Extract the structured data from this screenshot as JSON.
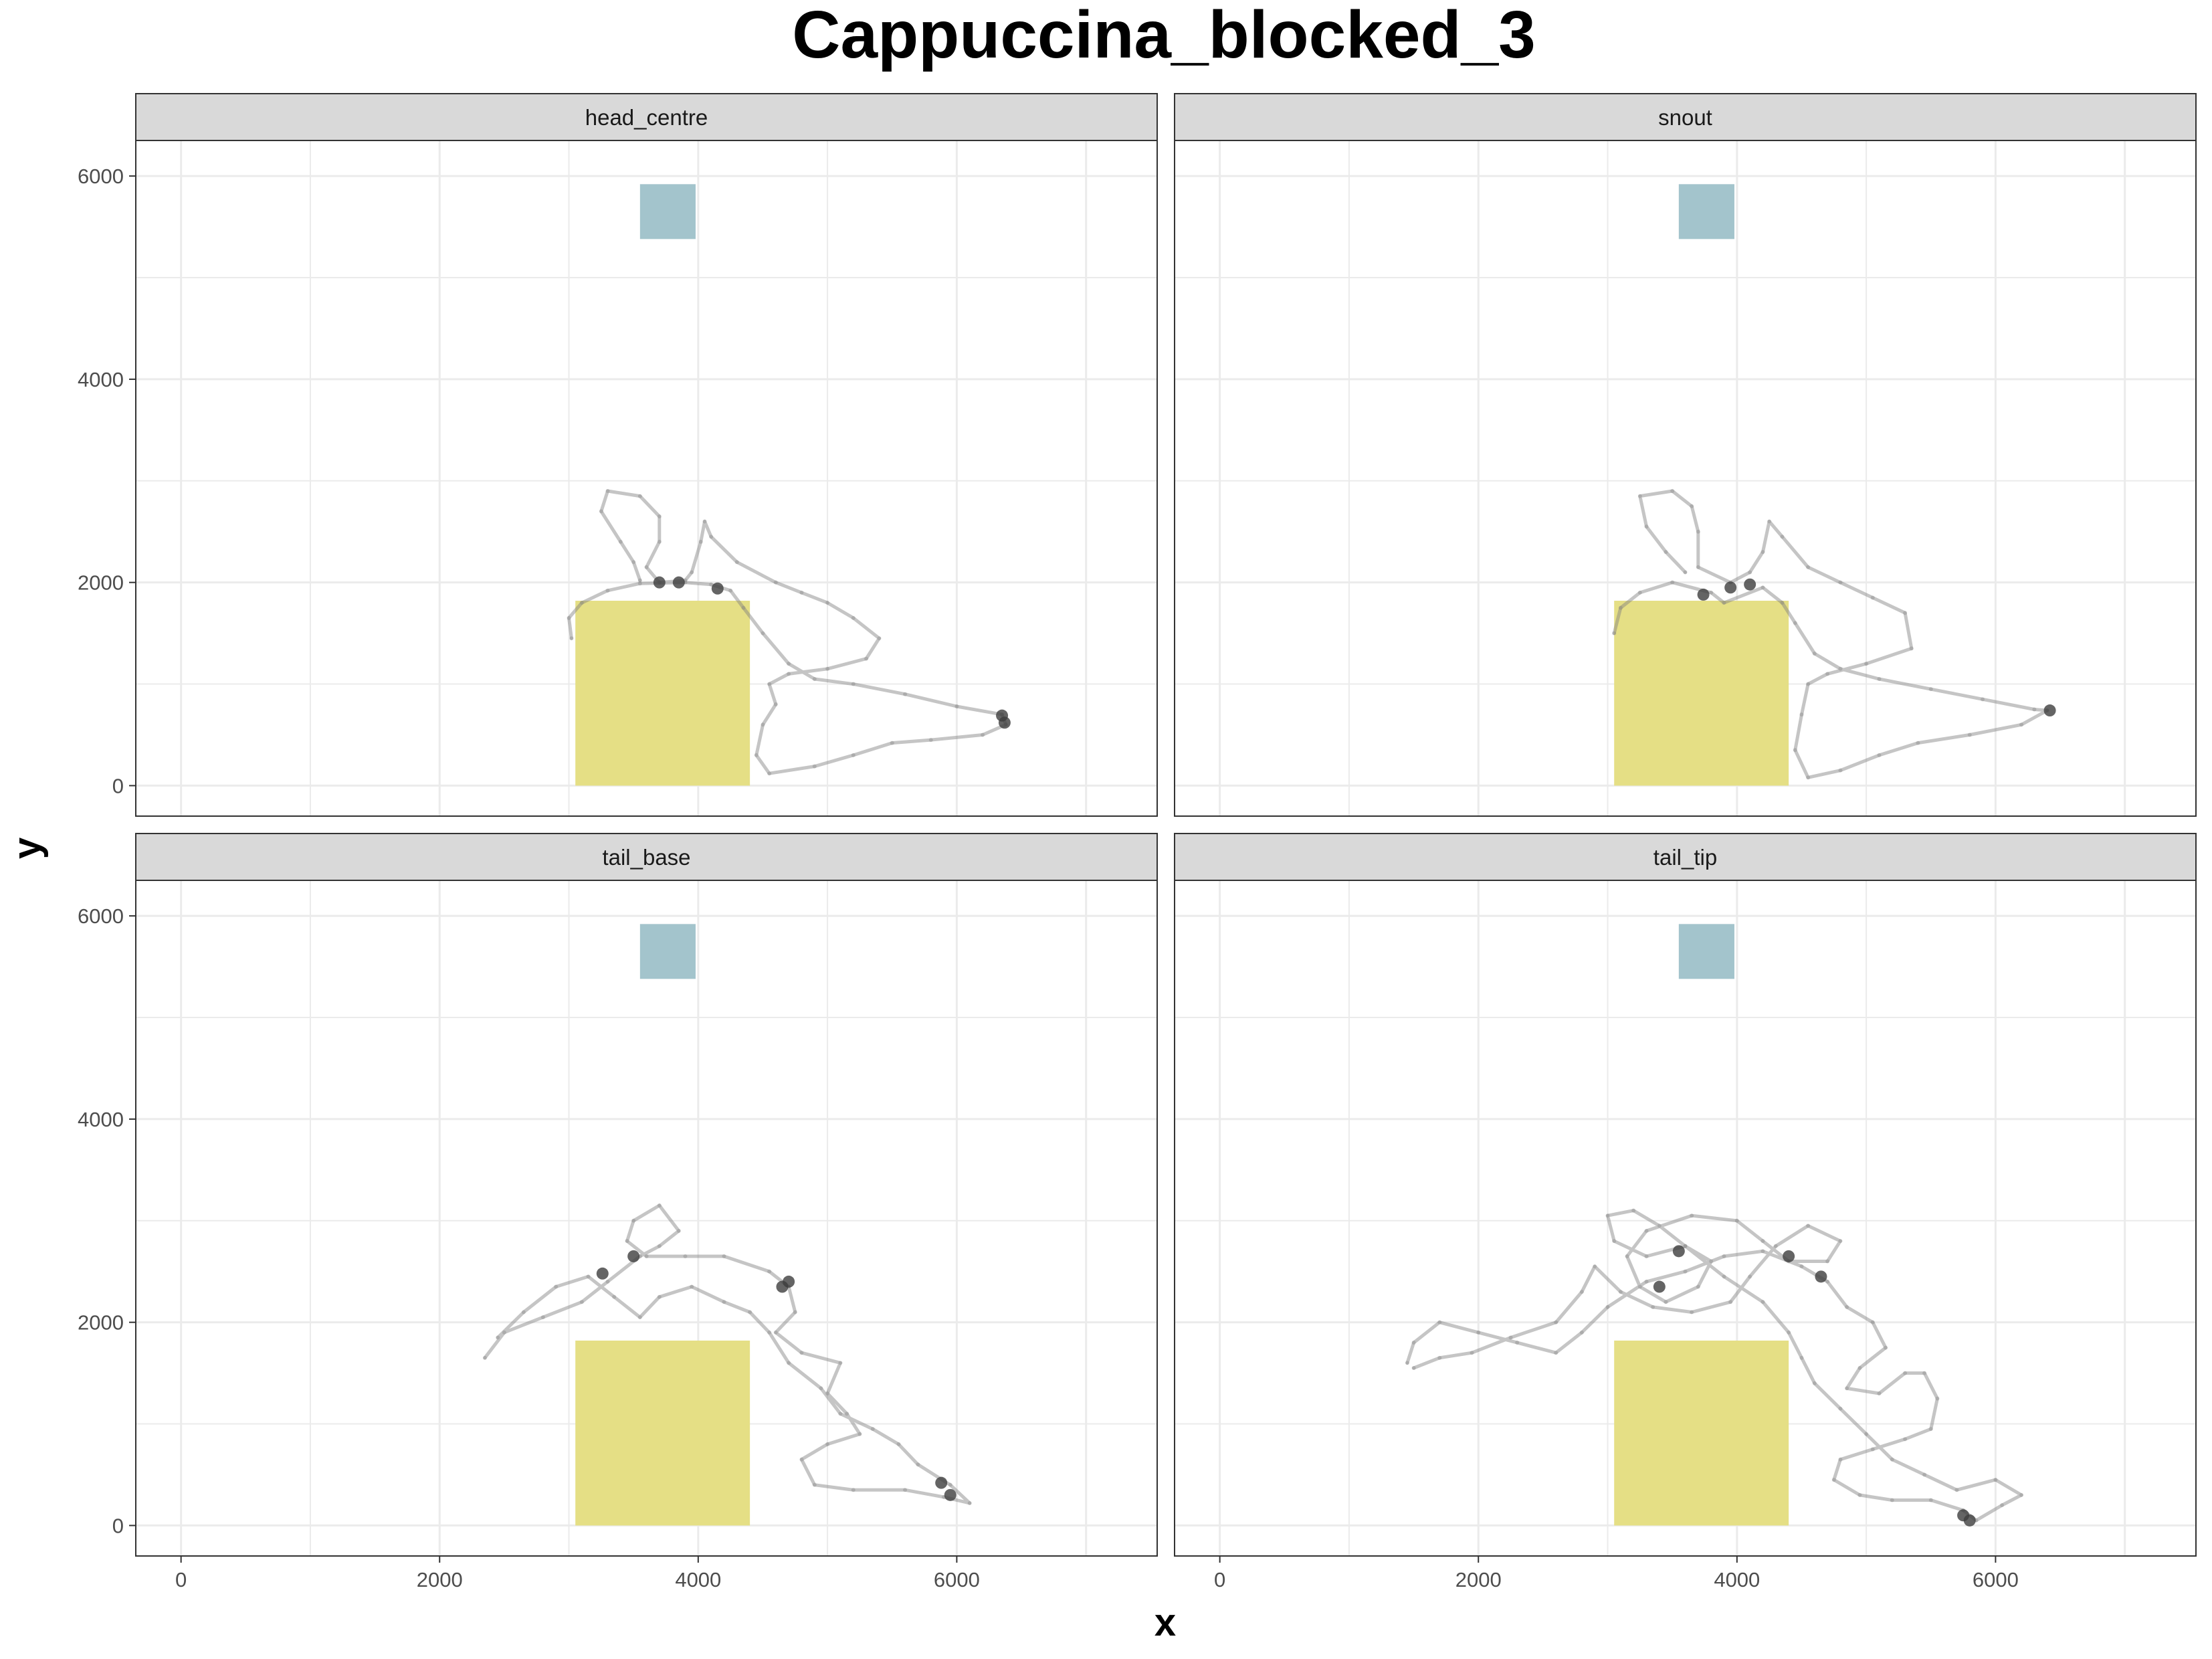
{
  "chart_data": {
    "type": "scatter",
    "title": "Cappuccina_blocked_3",
    "xlabel": "x",
    "ylabel": "y",
    "xlim": [
      -350,
      7550
    ],
    "ylim": [
      -300,
      6350
    ],
    "x_ticks": [
      0,
      2000,
      4000,
      6000
    ],
    "y_ticks": [
      0,
      2000,
      4000,
      6000
    ],
    "grid": true,
    "colors": {
      "path": "#7f7f7f",
      "zone_yellow": "#e5df85",
      "zone_blue": "#a3c4cc",
      "strip_fill": "#d9d9d9",
      "grid": "#ebebeb"
    },
    "zones": [
      {
        "x": [
          3050,
          4400
        ],
        "y": [
          0,
          1820
        ]
      },
      {
        "x": [
          3550,
          3980
        ],
        "y": [
          5380,
          5920
        ]
      }
    ],
    "panels": [
      {
        "name": "head_centre",
        "values": [
          [
            3020,
            1450
          ],
          [
            3000,
            1650
          ],
          [
            3100,
            1800
          ],
          [
            3300,
            1920
          ],
          [
            3550,
            1990
          ],
          [
            3900,
            2000
          ],
          [
            4100,
            1980
          ],
          [
            4250,
            1920
          ],
          [
            4350,
            1750
          ],
          [
            4500,
            1500
          ],
          [
            4700,
            1200
          ],
          [
            4900,
            1050
          ],
          [
            5200,
            1000
          ],
          [
            5600,
            900
          ],
          [
            6000,
            780
          ],
          [
            6350,
            700
          ],
          [
            6380,
            600
          ],
          [
            6200,
            500
          ],
          [
            5800,
            450
          ],
          [
            5500,
            420
          ],
          [
            5200,
            300
          ],
          [
            4900,
            190
          ],
          [
            4550,
            120
          ],
          [
            4450,
            300
          ],
          [
            4500,
            600
          ],
          [
            4600,
            800
          ],
          [
            4550,
            1000
          ],
          [
            4700,
            1100
          ],
          [
            5000,
            1150
          ],
          [
            5300,
            1250
          ],
          [
            5400,
            1450
          ],
          [
            5200,
            1650
          ],
          [
            5000,
            1800
          ],
          [
            4800,
            1900
          ],
          [
            4600,
            2000
          ],
          [
            4300,
            2200
          ],
          [
            4100,
            2450
          ],
          [
            4050,
            2600
          ],
          [
            4020,
            2400
          ],
          [
            3950,
            2100
          ],
          [
            3900,
            2020
          ],
          [
            3700,
            2000
          ],
          [
            3600,
            2150
          ],
          [
            3700,
            2400
          ],
          [
            3700,
            2650
          ],
          [
            3550,
            2850
          ],
          [
            3300,
            2900
          ],
          [
            3250,
            2700
          ],
          [
            3400,
            2400
          ],
          [
            3500,
            2200
          ],
          [
            3550,
            2020
          ]
        ]
      },
      {
        "name": "snout",
        "values": [
          [
            3050,
            1500
          ],
          [
            3100,
            1750
          ],
          [
            3250,
            1900
          ],
          [
            3500,
            2000
          ],
          [
            3800,
            1900
          ],
          [
            3900,
            1800
          ],
          [
            4200,
            1950
          ],
          [
            4350,
            1800
          ],
          [
            4450,
            1600
          ],
          [
            4600,
            1300
          ],
          [
            4800,
            1150
          ],
          [
            5100,
            1050
          ],
          [
            5500,
            950
          ],
          [
            5900,
            850
          ],
          [
            6300,
            750
          ],
          [
            6400,
            740
          ],
          [
            6200,
            600
          ],
          [
            5800,
            500
          ],
          [
            5400,
            420
          ],
          [
            5100,
            300
          ],
          [
            4800,
            150
          ],
          [
            4550,
            80
          ],
          [
            4450,
            350
          ],
          [
            4500,
            700
          ],
          [
            4550,
            1000
          ],
          [
            4700,
            1100
          ],
          [
            5000,
            1200
          ],
          [
            5350,
            1350
          ],
          [
            5300,
            1700
          ],
          [
            5050,
            1850
          ],
          [
            4800,
            2000
          ],
          [
            4550,
            2150
          ],
          [
            4350,
            2450
          ],
          [
            4250,
            2600
          ],
          [
            4200,
            2300
          ],
          [
            4100,
            2100
          ],
          [
            3950,
            2000
          ],
          [
            3700,
            2150
          ],
          [
            3700,
            2500
          ],
          [
            3650,
            2750
          ],
          [
            3500,
            2900
          ],
          [
            3250,
            2850
          ],
          [
            3300,
            2550
          ],
          [
            3450,
            2300
          ],
          [
            3600,
            2100
          ]
        ]
      },
      {
        "name": "tail_base",
        "values": [
          [
            2350,
            1650
          ],
          [
            2500,
            1900
          ],
          [
            2800,
            2050
          ],
          [
            3100,
            2200
          ],
          [
            3300,
            2400
          ],
          [
            3550,
            2650
          ],
          [
            3700,
            2750
          ],
          [
            3850,
            2900
          ],
          [
            3700,
            3150
          ],
          [
            3500,
            3000
          ],
          [
            3450,
            2800
          ],
          [
            3600,
            2650
          ],
          [
            3900,
            2650
          ],
          [
            4200,
            2650
          ],
          [
            4550,
            2500
          ],
          [
            4700,
            2350
          ],
          [
            4750,
            2100
          ],
          [
            4600,
            1900
          ],
          [
            4800,
            1700
          ],
          [
            5100,
            1600
          ],
          [
            5000,
            1300
          ],
          [
            5150,
            1100
          ],
          [
            5250,
            900
          ],
          [
            5000,
            800
          ],
          [
            4800,
            650
          ],
          [
            4900,
            400
          ],
          [
            5200,
            350
          ],
          [
            5600,
            350
          ],
          [
            5900,
            280
          ],
          [
            6100,
            220
          ],
          [
            5950,
            400
          ],
          [
            5700,
            600
          ],
          [
            5550,
            800
          ],
          [
            5350,
            950
          ],
          [
            5100,
            1100
          ],
          [
            4950,
            1350
          ],
          [
            4700,
            1600
          ],
          [
            4550,
            1900
          ],
          [
            4400,
            2100
          ],
          [
            4200,
            2200
          ],
          [
            3950,
            2350
          ],
          [
            3700,
            2250
          ],
          [
            3550,
            2050
          ],
          [
            3350,
            2250
          ],
          [
            3150,
            2450
          ],
          [
            2900,
            2350
          ],
          [
            2650,
            2100
          ],
          [
            2450,
            1850
          ]
        ]
      },
      {
        "name": "tail_tip",
        "values": [
          [
            1450,
            1600
          ],
          [
            1500,
            1800
          ],
          [
            1700,
            2000
          ],
          [
            2000,
            1900
          ],
          [
            2300,
            1800
          ],
          [
            2600,
            1700
          ],
          [
            2800,
            1900
          ],
          [
            3000,
            2150
          ],
          [
            3300,
            2400
          ],
          [
            3600,
            2500
          ],
          [
            3900,
            2650
          ],
          [
            4200,
            2700
          ],
          [
            4500,
            2550
          ],
          [
            4700,
            2400
          ],
          [
            4850,
            2150
          ],
          [
            5050,
            2000
          ],
          [
            5150,
            1750
          ],
          [
            4950,
            1550
          ],
          [
            4850,
            1350
          ],
          [
            5100,
            1300
          ],
          [
            5300,
            1500
          ],
          [
            5450,
            1500
          ],
          [
            5550,
            1250
          ],
          [
            5500,
            950
          ],
          [
            5300,
            850
          ],
          [
            5050,
            750
          ],
          [
            4800,
            650
          ],
          [
            4750,
            450
          ],
          [
            4950,
            300
          ],
          [
            5200,
            250
          ],
          [
            5500,
            250
          ],
          [
            5750,
            150
          ],
          [
            5850,
            50
          ],
          [
            6050,
            200
          ],
          [
            6200,
            300
          ],
          [
            6000,
            450
          ],
          [
            5700,
            350
          ],
          [
            5450,
            500
          ],
          [
            5200,
            650
          ],
          [
            5000,
            900
          ],
          [
            4800,
            1150
          ],
          [
            4600,
            1400
          ],
          [
            4500,
            1650
          ],
          [
            4400,
            1900
          ],
          [
            4200,
            2200
          ],
          [
            3900,
            2450
          ],
          [
            3600,
            2750
          ],
          [
            3400,
            2950
          ],
          [
            3200,
            3100
          ],
          [
            3000,
            3050
          ],
          [
            3050,
            2800
          ],
          [
            3300,
            2650
          ],
          [
            3600,
            2750
          ],
          [
            3800,
            2600
          ],
          [
            3700,
            2350
          ],
          [
            3450,
            2200
          ],
          [
            3250,
            2350
          ],
          [
            3150,
            2650
          ],
          [
            3300,
            2900
          ],
          [
            3650,
            3050
          ],
          [
            4000,
            3000
          ],
          [
            4200,
            2800
          ],
          [
            4400,
            2600
          ],
          [
            4700,
            2600
          ],
          [
            4800,
            2800
          ],
          [
            4550,
            2950
          ],
          [
            4300,
            2750
          ],
          [
            4100,
            2450
          ],
          [
            3950,
            2200
          ],
          [
            3650,
            2100
          ],
          [
            3350,
            2150
          ],
          [
            3100,
            2300
          ],
          [
            2900,
            2550
          ],
          [
            2800,
            2300
          ],
          [
            2600,
            2000
          ],
          [
            2250,
            1850
          ],
          [
            1950,
            1700
          ],
          [
            1700,
            1650
          ],
          [
            1500,
            1550
          ]
        ]
      }
    ],
    "density": [
      {
        "panel": "head_centre",
        "values": [
          [
            3700,
            2000
          ],
          [
            3850,
            2000
          ],
          [
            4150,
            1940
          ],
          [
            6350,
            690
          ],
          [
            6370,
            620
          ]
        ]
      },
      {
        "panel": "snout",
        "values": [
          [
            3740,
            1880
          ],
          [
            3950,
            1950
          ],
          [
            4100,
            1980
          ],
          [
            6420,
            740
          ]
        ]
      },
      {
        "panel": "tail_base",
        "values": [
          [
            3260,
            2480
          ],
          [
            3500,
            2650
          ],
          [
            4650,
            2350
          ],
          [
            4700,
            2400
          ],
          [
            5880,
            420
          ],
          [
            5950,
            300
          ]
        ]
      },
      {
        "panel": "tail_tip",
        "values": [
          [
            3400,
            2350
          ],
          [
            3550,
            2700
          ],
          [
            4400,
            2650
          ],
          [
            4650,
            2450
          ],
          [
            5750,
            100
          ],
          [
            5800,
            50
          ]
        ]
      }
    ]
  }
}
